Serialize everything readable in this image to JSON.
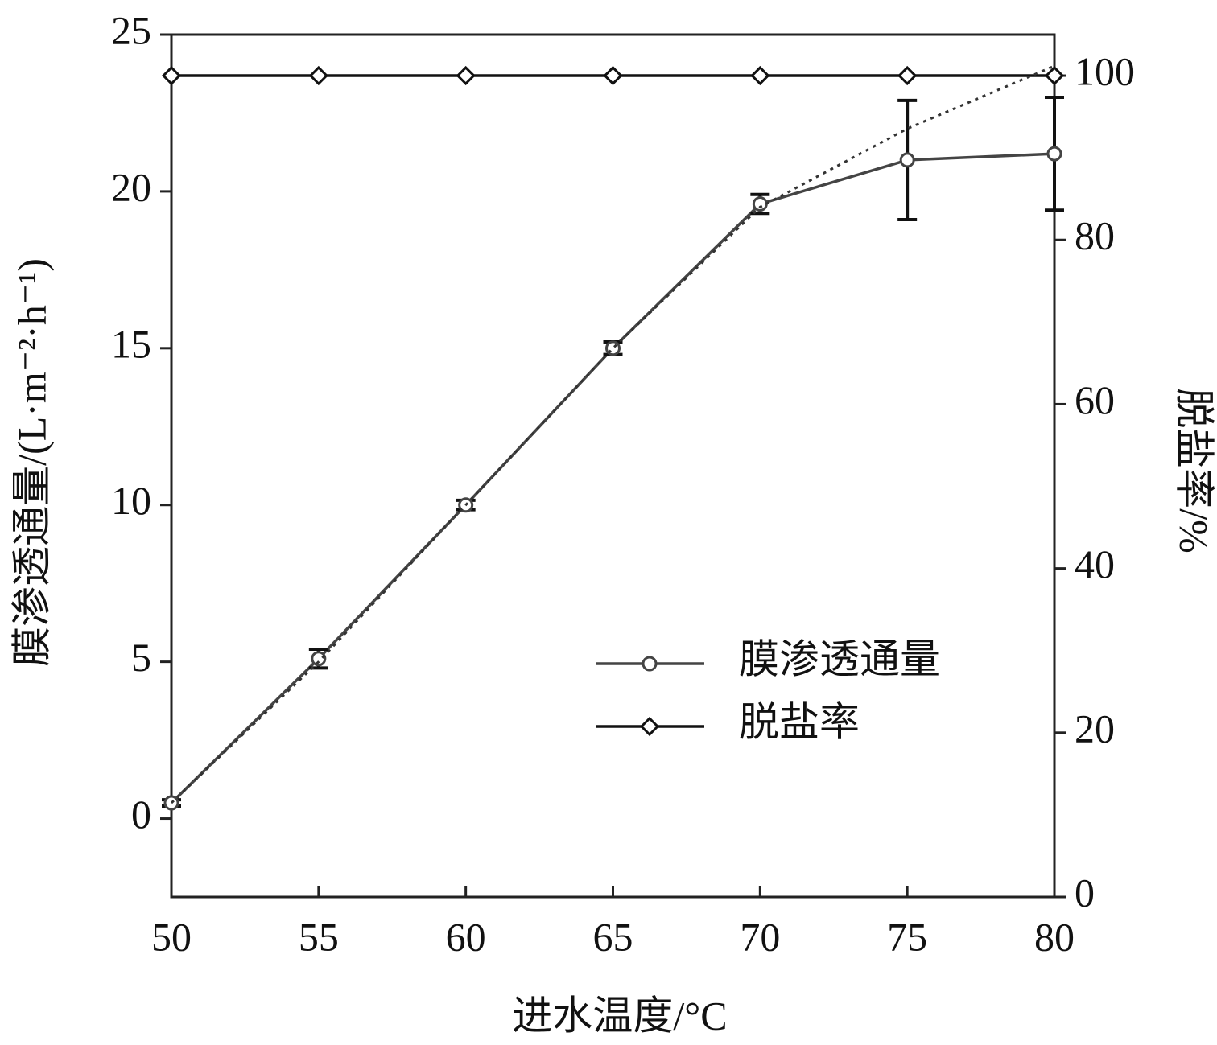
{
  "chart_data": {
    "type": "line",
    "x_label": "进水温度/°C",
    "y_label": "膜渗透通量/(L·m⁻²·h⁻¹)",
    "y2_label": "脱盐率/%",
    "x": [
      50,
      55,
      60,
      65,
      70,
      75,
      80
    ],
    "xlim": [
      50,
      80
    ],
    "xticks": [
      50,
      55,
      60,
      65,
      70,
      75,
      80
    ],
    "ylim": [
      -2.5,
      25
    ],
    "yticks": [
      0,
      5,
      10,
      15,
      20,
      25
    ],
    "y2lim": [
      0,
      105
    ],
    "y2ticks": [
      0,
      20,
      40,
      60,
      80,
      100
    ],
    "legend": "lower-right",
    "series": [
      {
        "name": "膜渗透通量",
        "color": "#444444",
        "marker": "circle",
        "values": [
          0.5,
          5.1,
          10.0,
          15.0,
          19.6,
          21.0,
          21.2
        ],
        "errors": [
          0.1,
          0.3,
          0.15,
          0.2,
          0.3,
          1.9,
          1.8
        ]
      },
      {
        "name": "脱盐率",
        "color": "#111111",
        "marker": "diamond",
        "axis": "y2",
        "values": [
          100,
          100,
          100,
          100,
          100,
          100,
          100
        ]
      },
      {
        "color": "#333333",
        "style": "dotted",
        "values": [
          0.5,
          5.0,
          10.0,
          15.0,
          19.5,
          22.0,
          24.0
        ]
      }
    ]
  }
}
